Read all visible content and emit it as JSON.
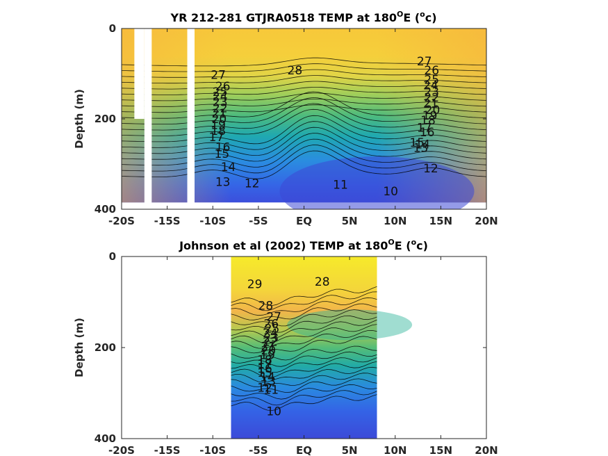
{
  "colors": {
    "warm_surface": "#f5e12c",
    "orange": "#f5b340",
    "green": "#6bc66a",
    "teal": "#1eaab0",
    "blue": "#2f7ce8",
    "deep_blue": "#4047d8"
  },
  "chart_data": [
    {
      "type": "heatmap",
      "title_main": "YR 212-281 GTJRA0518 TEMP at 180",
      "title_sup": "O",
      "title_tail": "E (",
      "title_unit_sup": "o",
      "title_unit": "c)",
      "ylabel": "Depth (m)",
      "xlabel": "",
      "xlim": [
        -20,
        20
      ],
      "ylim": [
        0,
        400
      ],
      "y_reversed": true,
      "x_ticks": [
        -20,
        -15,
        -10,
        -5,
        0,
        5,
        10,
        15,
        20
      ],
      "x_tick_labels": [
        "-20S",
        "-15S",
        "-10S",
        "-5S",
        "EQ",
        "5N",
        "10N",
        "15N",
        "20N"
      ],
      "y_ticks": [
        0,
        200,
        400
      ],
      "y_tick_labels": [
        "0",
        "200",
        "400"
      ],
      "data_x_range": [
        -20,
        20
      ],
      "max_depth": 385,
      "gaps": [
        {
          "x": [
            -18.6,
            -17.5
          ],
          "bottom": 200
        },
        {
          "x": [
            -17.5,
            -16.7
          ],
          "bottom": 400
        },
        {
          "x": [
            -12.8,
            -12.0
          ],
          "bottom": 400
        }
      ],
      "contour_labels": [
        {
          "text": "28",
          "x": -1.0,
          "y": 92
        },
        {
          "text": "27",
          "x": -9.4,
          "y": 102
        },
        {
          "text": "26",
          "x": -8.9,
          "y": 128
        },
        {
          "text": "25",
          "x": -9.2,
          "y": 140
        },
        {
          "text": "24",
          "x": -9.2,
          "y": 150
        },
        {
          "text": "23",
          "x": -9.2,
          "y": 162
        },
        {
          "text": "22",
          "x": -9.2,
          "y": 176
        },
        {
          "text": "21",
          "x": -9.3,
          "y": 188
        },
        {
          "text": "20",
          "x": -9.3,
          "y": 200
        },
        {
          "text": "19",
          "x": -9.4,
          "y": 213
        },
        {
          "text": "18",
          "x": -9.4,
          "y": 226
        },
        {
          "text": "17",
          "x": -9.6,
          "y": 240
        },
        {
          "text": "16",
          "x": -8.9,
          "y": 262
        },
        {
          "text": "15",
          "x": -9.0,
          "y": 277
        },
        {
          "text": "14",
          "x": -8.3,
          "y": 306
        },
        {
          "text": "13",
          "x": -8.9,
          "y": 339
        },
        {
          "text": "12",
          "x": -5.7,
          "y": 342
        },
        {
          "text": "11",
          "x": 4.0,
          "y": 345
        },
        {
          "text": "10",
          "x": 9.5,
          "y": 360
        },
        {
          "text": "27",
          "x": 13.2,
          "y": 72
        },
        {
          "text": "26",
          "x": 14.0,
          "y": 92
        },
        {
          "text": "25",
          "x": 14.0,
          "y": 113
        },
        {
          "text": "24",
          "x": 13.9,
          "y": 125
        },
        {
          "text": "23",
          "x": 14.0,
          "y": 140
        },
        {
          "text": "22",
          "x": 14.0,
          "y": 152
        },
        {
          "text": "21",
          "x": 13.9,
          "y": 165
        },
        {
          "text": "20",
          "x": 14.1,
          "y": 180
        },
        {
          "text": "19",
          "x": 13.8,
          "y": 192
        },
        {
          "text": "18",
          "x": 13.6,
          "y": 203
        },
        {
          "text": "17",
          "x": 13.2,
          "y": 219
        },
        {
          "text": "16",
          "x": 13.5,
          "y": 229
        },
        {
          "text": "15",
          "x": 12.4,
          "y": 252
        },
        {
          "text": "14",
          "x": 13.0,
          "y": 256
        },
        {
          "text": "13",
          "x": 12.8,
          "y": 264
        },
        {
          "text": "12",
          "x": 13.9,
          "y": 309
        }
      ]
    },
    {
      "type": "heatmap",
      "title_main": "Johnson et al (2002) TEMP at 180",
      "title_sup": "O",
      "title_tail": "E (",
      "title_unit_sup": "o",
      "title_unit": "c)",
      "ylabel": "Depth (m)",
      "xlabel": "",
      "xlim": [
        -20,
        20
      ],
      "ylim": [
        0,
        400
      ],
      "y_reversed": true,
      "x_ticks": [
        -20,
        -15,
        -10,
        -5,
        0,
        5,
        10,
        15,
        20
      ],
      "x_tick_labels": [
        "-20S",
        "-15S",
        "-10S",
        "-5S",
        "EQ",
        "5N",
        "10N",
        "15N",
        "20N"
      ],
      "y_ticks": [
        0,
        200,
        400
      ],
      "y_tick_labels": [
        "0",
        "200",
        "400"
      ],
      "data_x_range": [
        -8,
        8
      ],
      "max_depth": 400,
      "gaps": [],
      "contour_labels": [
        {
          "text": "29",
          "x": -5.4,
          "y": 60
        },
        {
          "text": "28",
          "x": 2.0,
          "y": 55
        },
        {
          "text": "28",
          "x": -4.2,
          "y": 108
        },
        {
          "text": "27",
          "x": -3.3,
          "y": 132
        },
        {
          "text": "26",
          "x": -3.6,
          "y": 147
        },
        {
          "text": "25",
          "x": -3.5,
          "y": 158
        },
        {
          "text": "24",
          "x": -3.7,
          "y": 168
        },
        {
          "text": "23",
          "x": -3.6,
          "y": 178
        },
        {
          "text": "22",
          "x": -3.7,
          "y": 187
        },
        {
          "text": "21",
          "x": -3.9,
          "y": 197
        },
        {
          "text": "20",
          "x": -3.9,
          "y": 206
        },
        {
          "text": "19",
          "x": -4.0,
          "y": 216
        },
        {
          "text": "18",
          "x": -4.3,
          "y": 227
        },
        {
          "text": "17",
          "x": -4.3,
          "y": 236
        },
        {
          "text": "16",
          "x": -4.3,
          "y": 246
        },
        {
          "text": "15",
          "x": -4.3,
          "y": 255
        },
        {
          "text": "14",
          "x": -4.0,
          "y": 265
        },
        {
          "text": "13",
          "x": -3.9,
          "y": 274
        },
        {
          "text": "12",
          "x": -4.3,
          "y": 288
        },
        {
          "text": "11",
          "x": -3.6,
          "y": 292
        },
        {
          "text": "10",
          "x": -3.3,
          "y": 340
        }
      ]
    }
  ]
}
